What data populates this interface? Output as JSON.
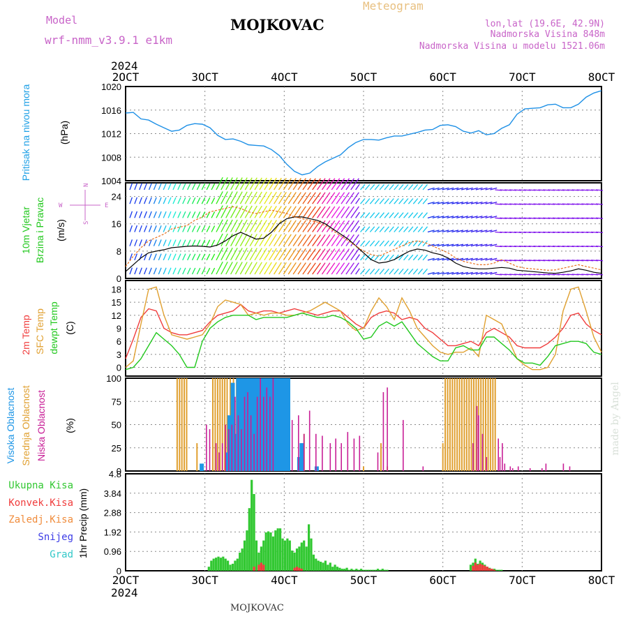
{
  "header": {
    "model_label": "Model",
    "model_name": "wrf-nmm_v3.9.1 e1km",
    "station": "MOJKOVAC",
    "product": "Meteogram",
    "coords": "lon,lat (19.6E, 42.9N)",
    "elevation": "Nadmorska Visina 848m",
    "model_elevation": "Nadmorska Visina u modelu 1521.06m"
  },
  "time_axis": {
    "year": "2024",
    "labels": [
      "2OCT",
      "3OCT",
      "4OCT",
      "5OCT",
      "6OCT",
      "7OCT",
      "8OCT"
    ],
    "day_start": 2,
    "day_end": 8
  },
  "footer": {
    "station": "MOJKOVAC",
    "credit": "made by Angel"
  },
  "colors": {
    "pressure": "#1e90e6",
    "wind_speed": "#000000",
    "wind_gust": "#e8701e",
    "temp2m": "#f03c3c",
    "sfc_temp": "#e0a030",
    "dewpoint": "#22c81e",
    "cloud_high": "#1e96e6",
    "cloud_mid": "#e0a030",
    "cloud_low": "#c81e96",
    "precip_total": "#32c832",
    "precip_conv": "#f03c3c",
    "precip_frozen": "#f08c3c",
    "snow": "#3c3ce6",
    "hail": "#32c8c8",
    "axis_label_purple": "#c864c8"
  },
  "chart_data": [
    {
      "type": "line",
      "panel": "pressure",
      "ylabel_left": "Pritisak na nivou mora",
      "unit": "(hPa)",
      "ylim": [
        1004,
        1020
      ],
      "yticks": [
        "1004",
        "1008",
        "1012",
        "1016",
        "1020"
      ],
      "series": [
        {
          "values": [
            1015.5,
            1015.6,
            1014.5,
            1014.3,
            1013.6,
            1013.0,
            1012.4,
            1012.6,
            1013.4,
            1013.7,
            1013.6,
            1013.0,
            1011.7,
            1011.0,
            1011.1,
            1010.7,
            1010.1,
            1010.0,
            1009.9,
            1009.3,
            1008.3,
            1006.8,
            1005.6,
            1005.0,
            1005.3,
            1006.4,
            1007.2,
            1007.8,
            1008.4,
            1009.6,
            1010.5,
            1011.0,
            1011.0,
            1010.9,
            1011.3,
            1011.6,
            1011.6,
            1011.9,
            1012.2,
            1012.6,
            1012.7,
            1013.4,
            1013.5,
            1013.2,
            1012.4,
            1012.1,
            1012.5,
            1011.8,
            1012.0,
            1012.9,
            1013.5,
            1015.3,
            1016.2,
            1016.3,
            1016.4,
            1016.9,
            1017.0,
            1016.4,
            1016.4,
            1017.0,
            1018.2,
            1018.9,
            1019.3
          ]
        }
      ]
    },
    {
      "type": "line",
      "panel": "wind",
      "ylabel_left": [
        "10m Vjetar",
        "Brzina i Pravac"
      ],
      "unit": "(m/s)",
      "direction_legend": [
        "N",
        "E",
        "W",
        "S"
      ],
      "ylim": [
        0,
        28
      ],
      "yticks": [
        "0",
        "8",
        "16",
        "24"
      ],
      "series": [
        {
          "values": [
            2.0,
            4.0,
            6.0,
            7.5,
            8.0,
            8.4,
            9.0,
            9.2,
            9.4,
            9.5,
            9.4,
            9.2,
            9.8,
            11.0,
            12.5,
            13.5,
            12.5,
            11.5,
            11.8,
            13.5,
            16.0,
            17.5,
            18.0,
            18.0,
            17.5,
            17.0,
            16.0,
            14.5,
            13.0,
            11.5,
            9.5,
            7.5,
            5.5,
            4.5,
            4.8,
            5.5,
            6.8,
            8.0,
            8.6,
            8.3,
            7.5,
            7.0,
            6.0,
            4.5,
            3.5,
            3.0,
            2.8,
            2.8,
            3.0,
            3.2,
            3.0,
            2.4,
            2.2,
            2.0,
            1.8,
            1.6,
            1.5,
            1.8,
            2.2,
            2.8,
            2.4,
            1.8,
            1.5
          ]
        },
        {
          "values": [
            3.5,
            6.5,
            9.0,
            11.0,
            12.0,
            13.0,
            14.5,
            15.0,
            15.5,
            17.0,
            18.0,
            19.5,
            20.0,
            20.5,
            21.0,
            20.5,
            19.5,
            19.0,
            19.5,
            20.0,
            19.5,
            19.0,
            18.0,
            17.5,
            17.0,
            16.5,
            15.5,
            14.0,
            12.5,
            11.0,
            9.5,
            8.0,
            7.0,
            6.5,
            7.5,
            8.5,
            9.5,
            10.5,
            11.0,
            10.5,
            9.5,
            8.5,
            7.5,
            6.0,
            5.0,
            4.5,
            4.0,
            4.0,
            4.5,
            5.5,
            4.5,
            3.5,
            3.0,
            2.8,
            2.6,
            2.4,
            2.5,
            3.0,
            3.5,
            4.0,
            3.5,
            3.0,
            2.5
          ]
        }
      ]
    },
    {
      "type": "line",
      "panel": "temperature",
      "ylabel_left": [
        "2m Temp",
        "SFC Temp",
        "dewpt Temp"
      ],
      "unit": "(C)",
      "ylim": [
        -2,
        20
      ],
      "yticks": [
        "0",
        "3",
        "6",
        "9",
        "12",
        "15",
        "18"
      ],
      "series": [
        {
          "values": [
            2,
            6.5,
            11.5,
            13.5,
            13,
            9,
            8,
            7.5,
            7.5,
            8,
            8.5,
            10.5,
            12,
            12.5,
            13,
            14.5,
            13,
            12.5,
            13,
            13,
            12.5,
            13,
            13.5,
            13,
            12.5,
            12,
            12.5,
            13,
            13,
            11.5,
            10,
            9,
            11.5,
            12.5,
            13,
            12.5,
            11,
            11.5,
            11,
            9,
            8,
            6.5,
            5,
            5,
            5.5,
            6,
            5,
            8,
            9,
            8,
            7,
            5,
            4.5,
            4.5,
            4.5,
            5.5,
            7,
            9,
            12,
            12.5,
            10,
            8.5,
            7.5
          ]
        },
        {
          "values": [
            0,
            1.5,
            10,
            18,
            18.5,
            12,
            7.5,
            7,
            6.5,
            7,
            7.5,
            10,
            14,
            15.5,
            15,
            14.5,
            12,
            12.5,
            12,
            12.5,
            12.5,
            12,
            12,
            12.5,
            13,
            14,
            15,
            14,
            13,
            10,
            8.5,
            9,
            13,
            16,
            14,
            11,
            16,
            13,
            9,
            7,
            5,
            3.5,
            3,
            3.5,
            3.5,
            4.5,
            2.5,
            12,
            11,
            10,
            6,
            2,
            0.5,
            -0.5,
            -0.5,
            0,
            3,
            13,
            18,
            18.5,
            13,
            7,
            3.5
          ]
        },
        {
          "values": [
            -0.5,
            0,
            2,
            5,
            8,
            6.5,
            5,
            3,
            0,
            0,
            6,
            9,
            10.5,
            11.5,
            12,
            12,
            12,
            11,
            11.5,
            11.5,
            11.5,
            11.5,
            12,
            12.5,
            12,
            11.5,
            11.5,
            12,
            11.5,
            10.5,
            9,
            6.5,
            7,
            9.5,
            10.5,
            9.5,
            10.5,
            8,
            5.5,
            4,
            2.5,
            1.5,
            1.5,
            4.5,
            5,
            4,
            4,
            7,
            7,
            5.5,
            4,
            2,
            1,
            1,
            0.5,
            2.5,
            5,
            5.5,
            6,
            6,
            5.5,
            3.5,
            3
          ]
        }
      ]
    },
    {
      "type": "bar",
      "panel": "clouds",
      "ylabel_left": [
        "Visoka Oblacnost",
        "Srednja Oblacnost",
        "Niska Oblacnost"
      ],
      "unit": "(%)",
      "ylim": [
        0,
        100
      ],
      "yticks": [
        "0",
        "25",
        "50",
        "75",
        "100"
      ],
      "series": [
        {
          "name": "high",
          "x_days": [
            2.96,
            3.28,
            3.31,
            3.35,
            3.38,
            3.42,
            3.45,
            3.48,
            3.51,
            3.54,
            3.57,
            3.6,
            3.63,
            3.66,
            3.69,
            3.72,
            3.75,
            3.78,
            3.81,
            3.84,
            3.87,
            3.9,
            3.93,
            3.96,
            3.99,
            4.02,
            4.05,
            4.19,
            4.22,
            4.41
          ],
          "values": [
            8,
            20,
            60,
            95,
            40,
            100,
            100,
            100,
            100,
            100,
            100,
            100,
            100,
            100,
            100,
            100,
            100,
            100,
            100,
            100,
            100,
            100,
            100,
            100,
            100,
            100,
            100,
            15,
            30,
            5
          ]
        },
        {
          "name": "mid",
          "x_days": [
            2.65,
            2.68,
            2.71,
            2.74,
            2.77,
            2.9,
            3.1,
            3.13,
            3.16,
            3.19,
            3.22,
            3.25,
            3.28,
            3.32,
            3.36,
            3.4,
            3.44,
            3.48,
            3.52,
            3.56,
            3.6,
            3.64,
            3.68,
            3.72,
            3.76,
            3.8,
            3.84,
            3.88,
            3.92,
            3.96,
            4.0,
            4.03,
            4.22,
            4.25,
            5.0,
            5.22,
            5.3,
            6.0,
            6.03,
            6.06,
            6.09,
            6.12,
            6.15,
            6.18,
            6.21,
            6.24,
            6.27,
            6.3,
            6.33,
            6.36,
            6.39,
            6.42,
            6.45,
            6.48,
            6.51,
            6.54,
            6.57,
            6.6,
            6.63,
            6.66
          ],
          "values": [
            100,
            100,
            100,
            100,
            100,
            30,
            100,
            100,
            100,
            100,
            100,
            100,
            100,
            100,
            100,
            100,
            100,
            100,
            100,
            100,
            100,
            100,
            100,
            100,
            100,
            100,
            100,
            100,
            100,
            100,
            100,
            100,
            30,
            40,
            5,
            30,
            5,
            30,
            100,
            100,
            100,
            100,
            100,
            100,
            100,
            100,
            100,
            100,
            100,
            100,
            100,
            100,
            100,
            100,
            100,
            100,
            100,
            100,
            100,
            100
          ]
        },
        {
          "name": "low",
          "x_days": [
            3.02,
            3.06,
            3.14,
            3.18,
            3.22,
            3.26,
            3.3,
            3.34,
            3.38,
            3.42,
            3.46,
            3.5,
            3.54,
            3.58,
            3.62,
            3.66,
            3.7,
            3.74,
            3.78,
            3.82,
            3.86,
            4.1,
            4.18,
            4.25,
            4.32,
            4.4,
            4.48,
            4.58,
            4.65,
            4.72,
            4.8,
            4.88,
            4.95,
            5.18,
            5.25,
            5.3,
            5.5,
            5.75,
            6.38,
            6.43,
            6.45,
            6.5,
            6.55,
            6.7,
            6.72,
            6.75,
            6.78,
            6.85,
            6.88,
            6.95,
            7.1,
            7.25,
            7.3,
            7.52,
            7.6
          ],
          "values": [
            50,
            45,
            30,
            20,
            30,
            50,
            45,
            50,
            80,
            60,
            45,
            80,
            85,
            60,
            40,
            80,
            100,
            80,
            90,
            80,
            100,
            55,
            60,
            40,
            65,
            40,
            38,
            30,
            35,
            30,
            42,
            35,
            38,
            20,
            85,
            90,
            55,
            5,
            30,
            70,
            60,
            40,
            15,
            35,
            15,
            30,
            8,
            5,
            3,
            5,
            3,
            3,
            8,
            8,
            5
          ]
        }
      ]
    },
    {
      "type": "bar",
      "panel": "precipitation",
      "ylabel_left": [
        "Ukupna Kisa",
        "Konvek.Kisa",
        "Zaledj.Kisa",
        "Snijeg",
        "Grad"
      ],
      "unit": "1hr Precip (mm)",
      "ylim": [
        0,
        4.8
      ],
      "yticks": [
        "0",
        "0.96",
        "1.92",
        "2.88",
        "3.84",
        "4.8"
      ],
      "series": [
        {
          "name": "total",
          "x_days": [
            3.05,
            3.08,
            3.11,
            3.14,
            3.17,
            3.2,
            3.23,
            3.26,
            3.29,
            3.32,
            3.35,
            3.38,
            3.41,
            3.44,
            3.47,
            3.5,
            3.53,
            3.56,
            3.59,
            3.62,
            3.65,
            3.68,
            3.71,
            3.74,
            3.77,
            3.8,
            3.83,
            3.86,
            3.89,
            3.92,
            3.95,
            3.98,
            4.01,
            4.04,
            4.07,
            4.1,
            4.13,
            4.16,
            4.19,
            4.22,
            4.25,
            4.28,
            4.31,
            4.34,
            4.37,
            4.4,
            4.43,
            4.46,
            4.49,
            4.52,
            4.55,
            4.58,
            4.61,
            4.64,
            4.67,
            4.7,
            4.73,
            4.76,
            4.79,
            4.82,
            4.85,
            4.88,
            4.91,
            4.94,
            4.97,
            5.0,
            5.03,
            5.06,
            5.09,
            5.12,
            5.15,
            5.18,
            5.21,
            5.24,
            5.27,
            5.3,
            6.35,
            6.38,
            6.41,
            6.44,
            6.47,
            6.5,
            6.53,
            6.56,
            6.59,
            6.62,
            6.65,
            6.68,
            6.71,
            6.74
          ],
          "values": [
            0.2,
            0.5,
            0.6,
            0.65,
            0.7,
            0.65,
            0.7,
            0.6,
            0.5,
            0.3,
            0.35,
            0.5,
            0.6,
            0.9,
            1.1,
            1.5,
            2.0,
            3.1,
            4.5,
            3.8,
            1.5,
            0.9,
            1.2,
            1.5,
            1.9,
            1.95,
            1.9,
            1.7,
            2.0,
            2.1,
            2.1,
            1.6,
            1.5,
            1.6,
            1.5,
            1.0,
            0.9,
            1.1,
            1.2,
            1.4,
            1.5,
            1.2,
            2.3,
            1.6,
            0.8,
            0.6,
            0.5,
            0.45,
            0.4,
            0.5,
            0.3,
            0.4,
            0.2,
            0.3,
            0.2,
            0.15,
            0.1,
            0.1,
            0.15,
            0.05,
            0.1,
            0.05,
            0.1,
            0.05,
            0.1,
            0.05,
            0.05,
            0.05,
            0.05,
            0.05,
            0.05,
            0.1,
            0.05,
            0.1,
            0.05,
            0.05,
            0.3,
            0.4,
            0.6,
            0.35,
            0.5,
            0.4,
            0.3,
            0.2,
            0.15,
            0.1,
            0.1,
            0.05,
            0.05,
            0.05
          ]
        },
        {
          "name": "convective",
          "x_days": [
            3.62,
            3.68,
            3.71,
            3.74,
            4.13,
            4.16,
            4.19,
            4.22,
            6.38,
            6.41,
            6.44,
            6.47,
            6.5,
            6.53,
            6.56,
            6.59,
            6.62,
            6.65
          ],
          "values": [
            0.2,
            0.3,
            0.4,
            0.3,
            0.15,
            0.2,
            0.15,
            0.1,
            0.25,
            0.4,
            0.3,
            0.35,
            0.3,
            0.25,
            0.2,
            0.12,
            0.1,
            0.05
          ]
        }
      ]
    }
  ]
}
